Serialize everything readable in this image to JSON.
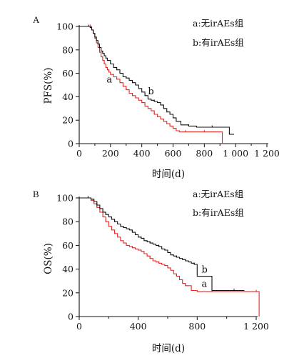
{
  "chart_data": [
    {
      "type": "line",
      "panel_label": "A",
      "ylabel": "PFS(%)",
      "xlabel": "时间(d)",
      "xlim": [
        0,
        1200
      ],
      "ylim": [
        0,
        100
      ],
      "xticks": [
        0,
        200,
        400,
        600,
        800,
        1000,
        1200
      ],
      "xtick_labels": [
        "0",
        "200",
        "400",
        "600",
        "800",
        "1 000",
        "1 200"
      ],
      "yticks": [
        0,
        20,
        40,
        60,
        80,
        100
      ],
      "ytick_labels": [
        "0",
        "20",
        "40",
        "60",
        "80",
        "100"
      ],
      "legend": [
        "a:无irAEs组",
        "b:有irAEs组"
      ],
      "series": [
        {
          "name": "a",
          "color": "#e02a26",
          "label_at": [
            175,
            52
          ],
          "x": [
            0,
            70,
            80,
            90,
            100,
            110,
            120,
            130,
            140,
            150,
            160,
            170,
            180,
            190,
            200,
            220,
            240,
            260,
            280,
            300,
            320,
            340,
            360,
            380,
            400,
            420,
            440,
            460,
            480,
            500,
            520,
            540,
            560,
            580,
            600,
            620,
            640,
            680,
            720,
            760,
            800,
            850,
            900,
            915
          ],
          "y": [
            100,
            100,
            97,
            94,
            90,
            86,
            82,
            78,
            74,
            71,
            68,
            65,
            63,
            61,
            59,
            57,
            55,
            52,
            49,
            46,
            43,
            41,
            39,
            37,
            35,
            32,
            30,
            28,
            25,
            23,
            21,
            19,
            17,
            15,
            13,
            11,
            10,
            10,
            10,
            10,
            10,
            10,
            10,
            0
          ]
        },
        {
          "name": "b",
          "color": "#111111",
          "label_at": [
            440,
            42
          ],
          "x": [
            0,
            60,
            70,
            80,
            90,
            100,
            110,
            120,
            130,
            140,
            150,
            160,
            170,
            180,
            200,
            220,
            240,
            260,
            280,
            300,
            320,
            340,
            360,
            380,
            400,
            420,
            440,
            460,
            480,
            500,
            520,
            540,
            560,
            580,
            600,
            620,
            650,
            700,
            750,
            800,
            850,
            900,
            940,
            960,
            990
          ],
          "y": [
            100,
            100,
            99,
            97,
            94,
            91,
            88,
            85,
            82,
            79,
            77,
            75,
            73,
            71,
            68,
            65,
            63,
            60,
            57,
            56,
            54,
            52,
            50,
            47,
            44,
            41,
            38,
            37,
            36,
            35,
            33,
            30,
            27,
            25,
            22,
            19,
            16,
            15,
            14,
            14,
            14,
            14,
            14,
            8,
            8
          ]
        }
      ]
    },
    {
      "type": "line",
      "panel_label": "B",
      "ylabel": "OS(%)",
      "xlabel": "时间(d)",
      "xlim": [
        0,
        1200
      ],
      "ylim": [
        0,
        100
      ],
      "xticks": [
        0,
        400,
        800,
        1200
      ],
      "xtick_labels": [
        "0",
        "400",
        "800",
        "1 200"
      ],
      "yticks": [
        0,
        20,
        40,
        60,
        80,
        100
      ],
      "ytick_labels": [
        "0",
        "20",
        "40",
        "60",
        "80",
        "100"
      ],
      "legend": [
        "a:无irAEs组",
        "b:有irAEs组"
      ],
      "series": [
        {
          "name": "a",
          "color": "#e02a26",
          "label_at": [
            830,
            25
          ],
          "x": [
            0,
            60,
            80,
            100,
            120,
            140,
            160,
            180,
            200,
            220,
            240,
            260,
            280,
            300,
            320,
            340,
            360,
            380,
            400,
            420,
            440,
            460,
            480,
            500,
            520,
            540,
            560,
            580,
            600,
            620,
            640,
            660,
            680,
            700,
            720,
            760,
            800,
            900,
            1000,
            1100,
            1200,
            1220
          ],
          "y": [
            100,
            100,
            98,
            95,
            92,
            88,
            84,
            80,
            76,
            73,
            70,
            67,
            64,
            62,
            60,
            59,
            58,
            57,
            56,
            55,
            53,
            51,
            49,
            47,
            46,
            45,
            44,
            43,
            41,
            39,
            36,
            34,
            31,
            28,
            26,
            22,
            21,
            21,
            21,
            21,
            21,
            0
          ]
        },
        {
          "name": "b",
          "color": "#111111",
          "label_at": [
            830,
            37
          ],
          "x": [
            0,
            60,
            80,
            100,
            120,
            140,
            160,
            180,
            200,
            220,
            240,
            260,
            280,
            300,
            320,
            340,
            360,
            380,
            400,
            420,
            440,
            460,
            480,
            500,
            520,
            540,
            560,
            580,
            600,
            620,
            640,
            660,
            680,
            700,
            720,
            740,
            760,
            780,
            800,
            850,
            900,
            950,
            1000,
            1050,
            1100,
            1120
          ],
          "y": [
            100,
            100,
            99,
            97,
            94,
            91,
            88,
            86,
            84,
            82,
            80,
            78,
            76,
            75,
            74,
            73,
            71,
            69,
            67,
            66,
            64,
            63,
            62,
            61,
            60,
            59,
            57,
            56,
            54,
            52,
            51,
            50,
            49,
            48,
            47,
            46,
            45,
            44,
            34,
            34,
            22,
            22,
            22,
            22,
            22,
            22
          ]
        }
      ]
    }
  ]
}
